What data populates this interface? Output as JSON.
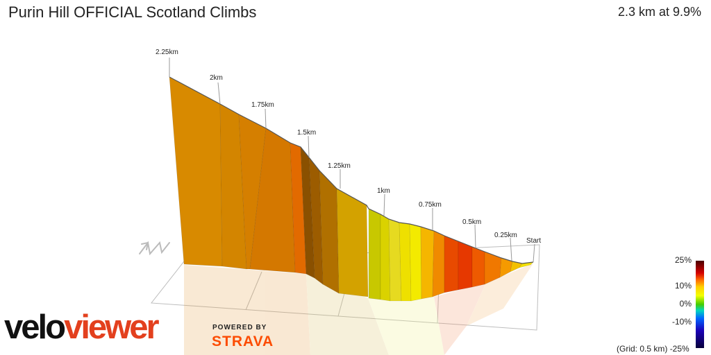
{
  "header": {
    "title": "Purin Hill OFFICIAL Scotland Climbs",
    "summary": "2.3 km at 9.9%"
  },
  "profile": {
    "distance_labels": [
      "2.25km",
      "2km",
      "1.75km",
      "1.5km",
      "1.25km",
      "1km",
      "0.75km",
      "0.5km",
      "0.25km",
      "Start"
    ],
    "north_arrow": "N",
    "grid_note": "(Grid: 0.5 km)"
  },
  "legend": {
    "ticks": [
      "25%",
      "10%",
      "0%",
      "-10%",
      "-25%"
    ],
    "colors": [
      "#4a0000",
      "#d40000",
      "#ffd000",
      "#44cc00",
      "#0066ff",
      "#07003a"
    ]
  },
  "branding": {
    "velo": "velo",
    "viewer": "viewer",
    "powered_by": "POWERED BY",
    "strava": "STRAVA"
  }
}
